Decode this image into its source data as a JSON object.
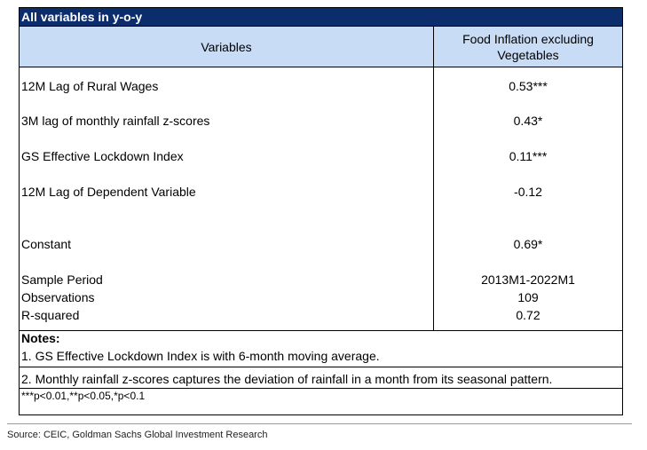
{
  "title": "All variables in y-o-y",
  "header": {
    "variables_label": "Variables",
    "value_label": "Food Inflation excluding Vegetables"
  },
  "rows": [
    {
      "label": "12M Lag of Rural Wages",
      "value": "0.53***"
    },
    {
      "label": "3M lag of monthly rainfall z-scores",
      "value": "0.43*"
    },
    {
      "label": "GS Effective Lockdown Index",
      "value": "0.11***"
    },
    {
      "label": "12M Lag of Dependent Variable",
      "value": "-0.12"
    },
    {
      "label": "Constant",
      "value": "0.69*"
    },
    {
      "label": "Sample Period",
      "value": "2013M1-2022M1"
    },
    {
      "label": "Observations",
      "value": "109"
    },
    {
      "label": "R-squared",
      "value": "0.72"
    }
  ],
  "notes": {
    "heading": "Notes:",
    "items": [
      "1. GS Effective Lockdown Index is with 6-month moving average.",
      "2. Monthly rainfall z-scores captures the deviation of rainfall in a month from its seasonal pattern."
    ],
    "significance": "***p<0.01,**p<0.05,*p<0.1"
  },
  "source": "Source: CEIC, Goldman Sachs Global Investment Research",
  "colors": {
    "title_bg": "#0b2d6c",
    "header_bg": "#c8dcf6"
  }
}
